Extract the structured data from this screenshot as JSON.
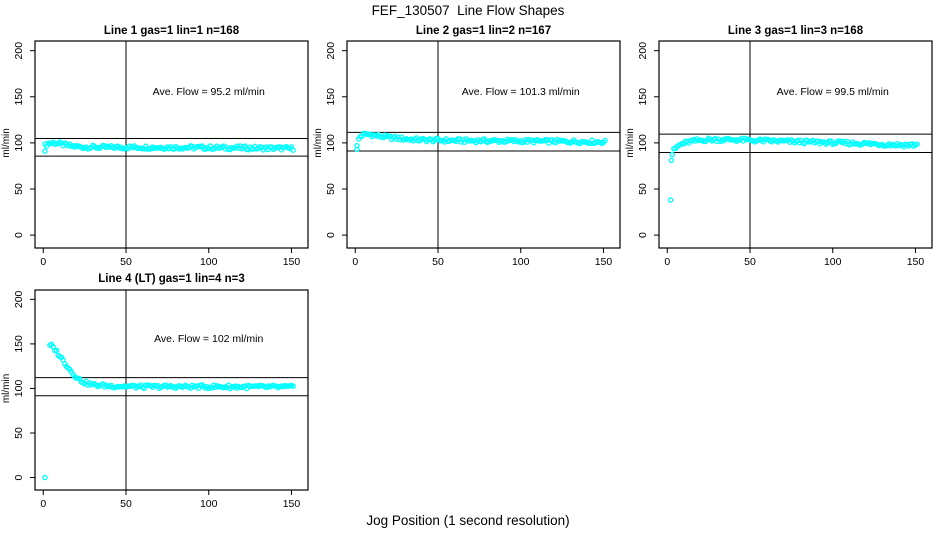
{
  "figure": {
    "title": "FEF_130507  Line Flow Shapes",
    "xlabel": "Jog Position (1 second resolution)",
    "background": "#FFFFFF",
    "text_color": "#000000",
    "marker_color": "#00FFFF",
    "axis_color": "#000000"
  },
  "chart_data": [
    {
      "type": "scatter",
      "title": "Line 1 gas=1 lin=1 n=168",
      "annotation": "Ave. Flow =  95.2  ml/min",
      "ave_flow_ml_min": 95.2,
      "n": 168,
      "ylabel": "ml/min",
      "x_ticks": [
        0,
        50,
        100,
        150
      ],
      "y_ticks": [
        0,
        50,
        100,
        150,
        200
      ],
      "xlim": [
        -5,
        160
      ],
      "ylim": [
        -14,
        210.5
      ],
      "vline_x": 50,
      "hlines": [
        104.7,
        85.7
      ],
      "marker": "open-circle",
      "marker_color": "#00FFFF",
      "annotation_pos": [
        100,
        152
      ],
      "x_draw_range": [
        1,
        151
      ],
      "series_keyframes": [
        [
          1,
          97
        ],
        [
          3,
          99.5
        ],
        [
          6,
          100.2
        ],
        [
          10,
          99
        ],
        [
          14,
          97.5
        ],
        [
          18,
          96.3
        ],
        [
          24,
          95.5
        ],
        [
          35,
          95.2
        ],
        [
          60,
          95.2
        ],
        [
          90,
          95
        ],
        [
          120,
          94.6
        ],
        [
          151,
          94
        ]
      ],
      "extra_points": [
        [
          1,
          91
        ]
      ]
    },
    {
      "type": "scatter",
      "title": "Line 2 gas=1 lin=2 n=167",
      "annotation": "Ave. Flow =  101.3  ml/min",
      "ave_flow_ml_min": 101.3,
      "n": 167,
      "ylabel": "ml/min",
      "x_ticks": [
        0,
        50,
        100,
        150
      ],
      "y_ticks": [
        0,
        50,
        100,
        150,
        200
      ],
      "xlim": [
        -5,
        160
      ],
      "ylim": [
        -14,
        210.5
      ],
      "vline_x": 50,
      "hlines": [
        111.4,
        91.2
      ],
      "marker": "open-circle",
      "marker_color": "#00FFFF",
      "annotation_pos": [
        100,
        152
      ],
      "x_draw_range": [
        2,
        151
      ],
      "series_keyframes": [
        [
          2,
          104
        ],
        [
          3,
          107
        ],
        [
          5,
          109
        ],
        [
          8,
          109.5
        ],
        [
          12,
          108
        ],
        [
          20,
          106
        ],
        [
          30,
          104.3
        ],
        [
          40,
          103.2
        ],
        [
          60,
          102.5
        ],
        [
          100,
          102
        ],
        [
          130,
          101.5
        ],
        [
          151,
          101
        ]
      ],
      "extra_points": [
        [
          1,
          93
        ],
        [
          1,
          97
        ]
      ]
    },
    {
      "type": "scatter",
      "title": "Line 3 gas=1 lin=3 n=168",
      "annotation": "Ave. Flow =  99.5  ml/min",
      "ave_flow_ml_min": 99.5,
      "n": 168,
      "ylabel": "ml/min",
      "x_ticks": [
        0,
        50,
        100,
        150
      ],
      "y_ticks": [
        0,
        50,
        100,
        150,
        200
      ],
      "xlim": [
        -5,
        160
      ],
      "ylim": [
        -14,
        210.5
      ],
      "vline_x": 50,
      "hlines": [
        109.5,
        89.6
      ],
      "marker": "open-circle",
      "marker_color": "#00FFFF",
      "annotation_pos": [
        100,
        152
      ],
      "x_draw_range": [
        3,
        151
      ],
      "series_keyframes": [
        [
          3,
          88
        ],
        [
          4,
          92
        ],
        [
          6,
          96
        ],
        [
          9,
          99
        ],
        [
          13,
          101
        ],
        [
          18,
          102.5
        ],
        [
          25,
          103.5
        ],
        [
          40,
          103.5
        ],
        [
          55,
          102.5
        ],
        [
          75,
          101.5
        ],
        [
          95,
          100.5
        ],
        [
          115,
          99.5
        ],
        [
          130,
          98.5
        ],
        [
          145,
          97.6
        ],
        [
          151,
          98
        ]
      ],
      "extra_points": [
        [
          2,
          38
        ],
        [
          2.5,
          81
        ]
      ]
    },
    {
      "type": "scatter",
      "title": "Line 4 (LT) gas=1 lin=4 n=3",
      "annotation": "Ave. Flow =  102  ml/min",
      "ave_flow_ml_min": 102,
      "n": 3,
      "ylabel": "ml/min",
      "x_ticks": [
        0,
        50,
        100,
        150
      ],
      "y_ticks": [
        0,
        50,
        100,
        150,
        200
      ],
      "xlim": [
        -5,
        160
      ],
      "ylim": [
        -14,
        210.5
      ],
      "vline_x": 50,
      "hlines": [
        112.2,
        91.8
      ],
      "marker": "open-circle",
      "marker_color": "#00FFFF",
      "annotation_pos": [
        100,
        152
      ],
      "x_draw_range": [
        4,
        151
      ],
      "series_keyframes": [
        [
          4,
          148
        ],
        [
          5,
          148
        ],
        [
          7,
          144
        ],
        [
          9,
          139
        ],
        [
          11,
          134
        ],
        [
          13,
          129
        ],
        [
          15,
          124
        ],
        [
          17,
          119
        ],
        [
          19,
          115
        ],
        [
          21,
          111
        ],
        [
          23,
          108.5
        ],
        [
          26,
          106
        ],
        [
          29,
          104.5
        ],
        [
          33,
          103.5
        ],
        [
          38,
          103
        ],
        [
          45,
          102.5
        ],
        [
          60,
          102
        ],
        [
          90,
          102
        ],
        [
          120,
          101.8
        ],
        [
          151,
          101.5
        ]
      ],
      "extra_points": [
        [
          1,
          0
        ]
      ]
    }
  ]
}
